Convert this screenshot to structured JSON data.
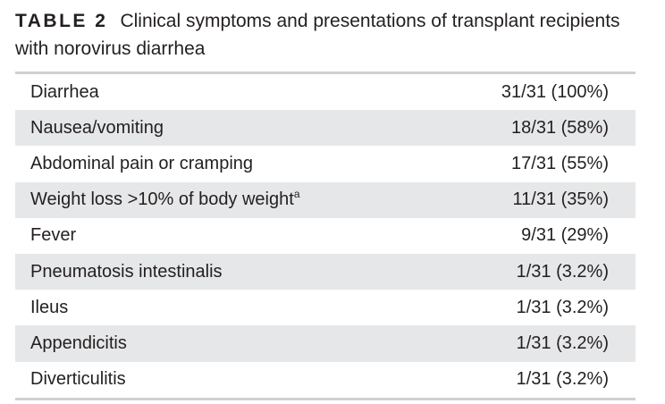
{
  "caption": {
    "label": "TABLE 2",
    "text": "Clinical symptoms and presentations of transplant recipients with norovirus diarrhea"
  },
  "rows": [
    {
      "symptom": "Diarrhea",
      "footnote": "",
      "count": "31/31 (100%)"
    },
    {
      "symptom": "Nausea/vomiting",
      "footnote": "",
      "count": "18/31 (58%)"
    },
    {
      "symptom": "Abdominal pain or cramping",
      "footnote": "",
      "count": "17/31 (55%)"
    },
    {
      "symptom": "Weight loss >10% of body weight",
      "footnote": "a",
      "count": "11/31 (35%)"
    },
    {
      "symptom": "Fever",
      "footnote": "",
      "count": "9/31 (29%)"
    },
    {
      "symptom": "Pneumatosis intestinalis",
      "footnote": "",
      "count": "1/31 (3.2%)"
    },
    {
      "symptom": "Ileus",
      "footnote": "",
      "count": "1/31 (3.2%)"
    },
    {
      "symptom": "Appendicitis",
      "footnote": "",
      "count": "1/31 (3.2%)"
    },
    {
      "symptom": "Diverticulitis",
      "footnote": "",
      "count": "1/31 (3.2%)"
    }
  ],
  "colors": {
    "text": "#231f20",
    "row_shade": "#e6e7e8",
    "rule": "#d0d0d0"
  }
}
